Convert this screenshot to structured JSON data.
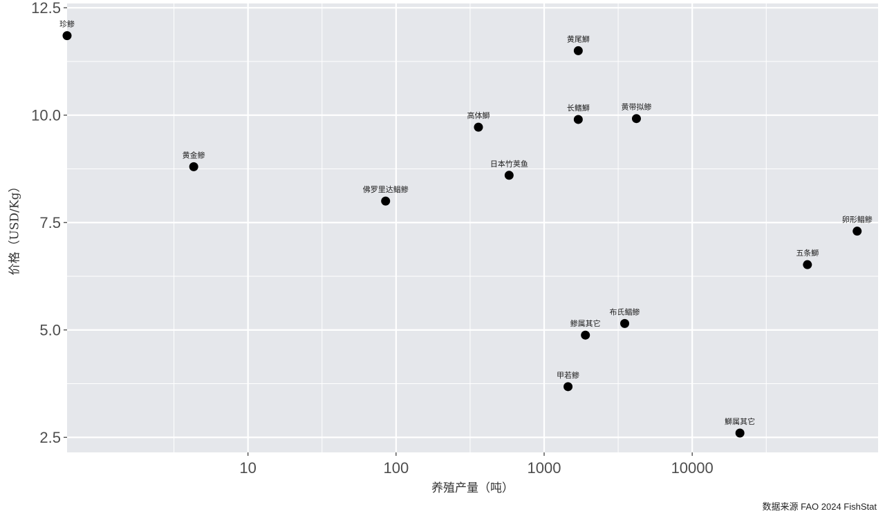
{
  "chart_data": {
    "type": "scatter",
    "title": "",
    "xlabel": "养殖产量（吨）",
    "ylabel": "价格（USD/Kg）",
    "x_scale": "log",
    "xlim": [
      0.6,
      180000
    ],
    "ylim": [
      2.15,
      12.6
    ],
    "x_ticks": [
      10,
      100,
      1000,
      10000
    ],
    "x_tick_labels": [
      "10",
      "100",
      "1000",
      "10000"
    ],
    "y_ticks": [
      2.5,
      5.0,
      7.5,
      10.0,
      12.5
    ],
    "y_tick_labels": [
      "2.5",
      "5.0",
      "7.5",
      "10.0",
      "12.5"
    ],
    "grid": true,
    "points": [
      {
        "label": "珍鲹",
        "x": 0.6,
        "y": 11.85
      },
      {
        "label": "黄尾鰤",
        "x": 1700,
        "y": 11.5
      },
      {
        "label": "高体鰤",
        "x": 360,
        "y": 9.72
      },
      {
        "label": "长鳍鰤",
        "x": 1700,
        "y": 9.9
      },
      {
        "label": "黄带拟鲹",
        "x": 4200,
        "y": 9.92
      },
      {
        "label": "黄金鲹",
        "x": 4.3,
        "y": 8.8
      },
      {
        "label": "日本竹荚鱼",
        "x": 580,
        "y": 8.6
      },
      {
        "label": "佛罗里达鲳鲹",
        "x": 85,
        "y": 8.0
      },
      {
        "label": "卵形鲳鲹",
        "x": 130000,
        "y": 7.3
      },
      {
        "label": "五条鰤",
        "x": 60000,
        "y": 6.52
      },
      {
        "label": "布氏鲳鲹",
        "x": 3500,
        "y": 5.15
      },
      {
        "label": "鲹属其它",
        "x": 1900,
        "y": 4.88
      },
      {
        "label": "甲若鲹",
        "x": 1450,
        "y": 3.68
      },
      {
        "label": "鰤属其它",
        "x": 21000,
        "y": 2.6
      }
    ],
    "source": "数据来源 FAO 2024 FishStat",
    "colors": {
      "panel": "#e5e7eb",
      "grid_major": "#ffffff",
      "point": "#000000"
    }
  }
}
